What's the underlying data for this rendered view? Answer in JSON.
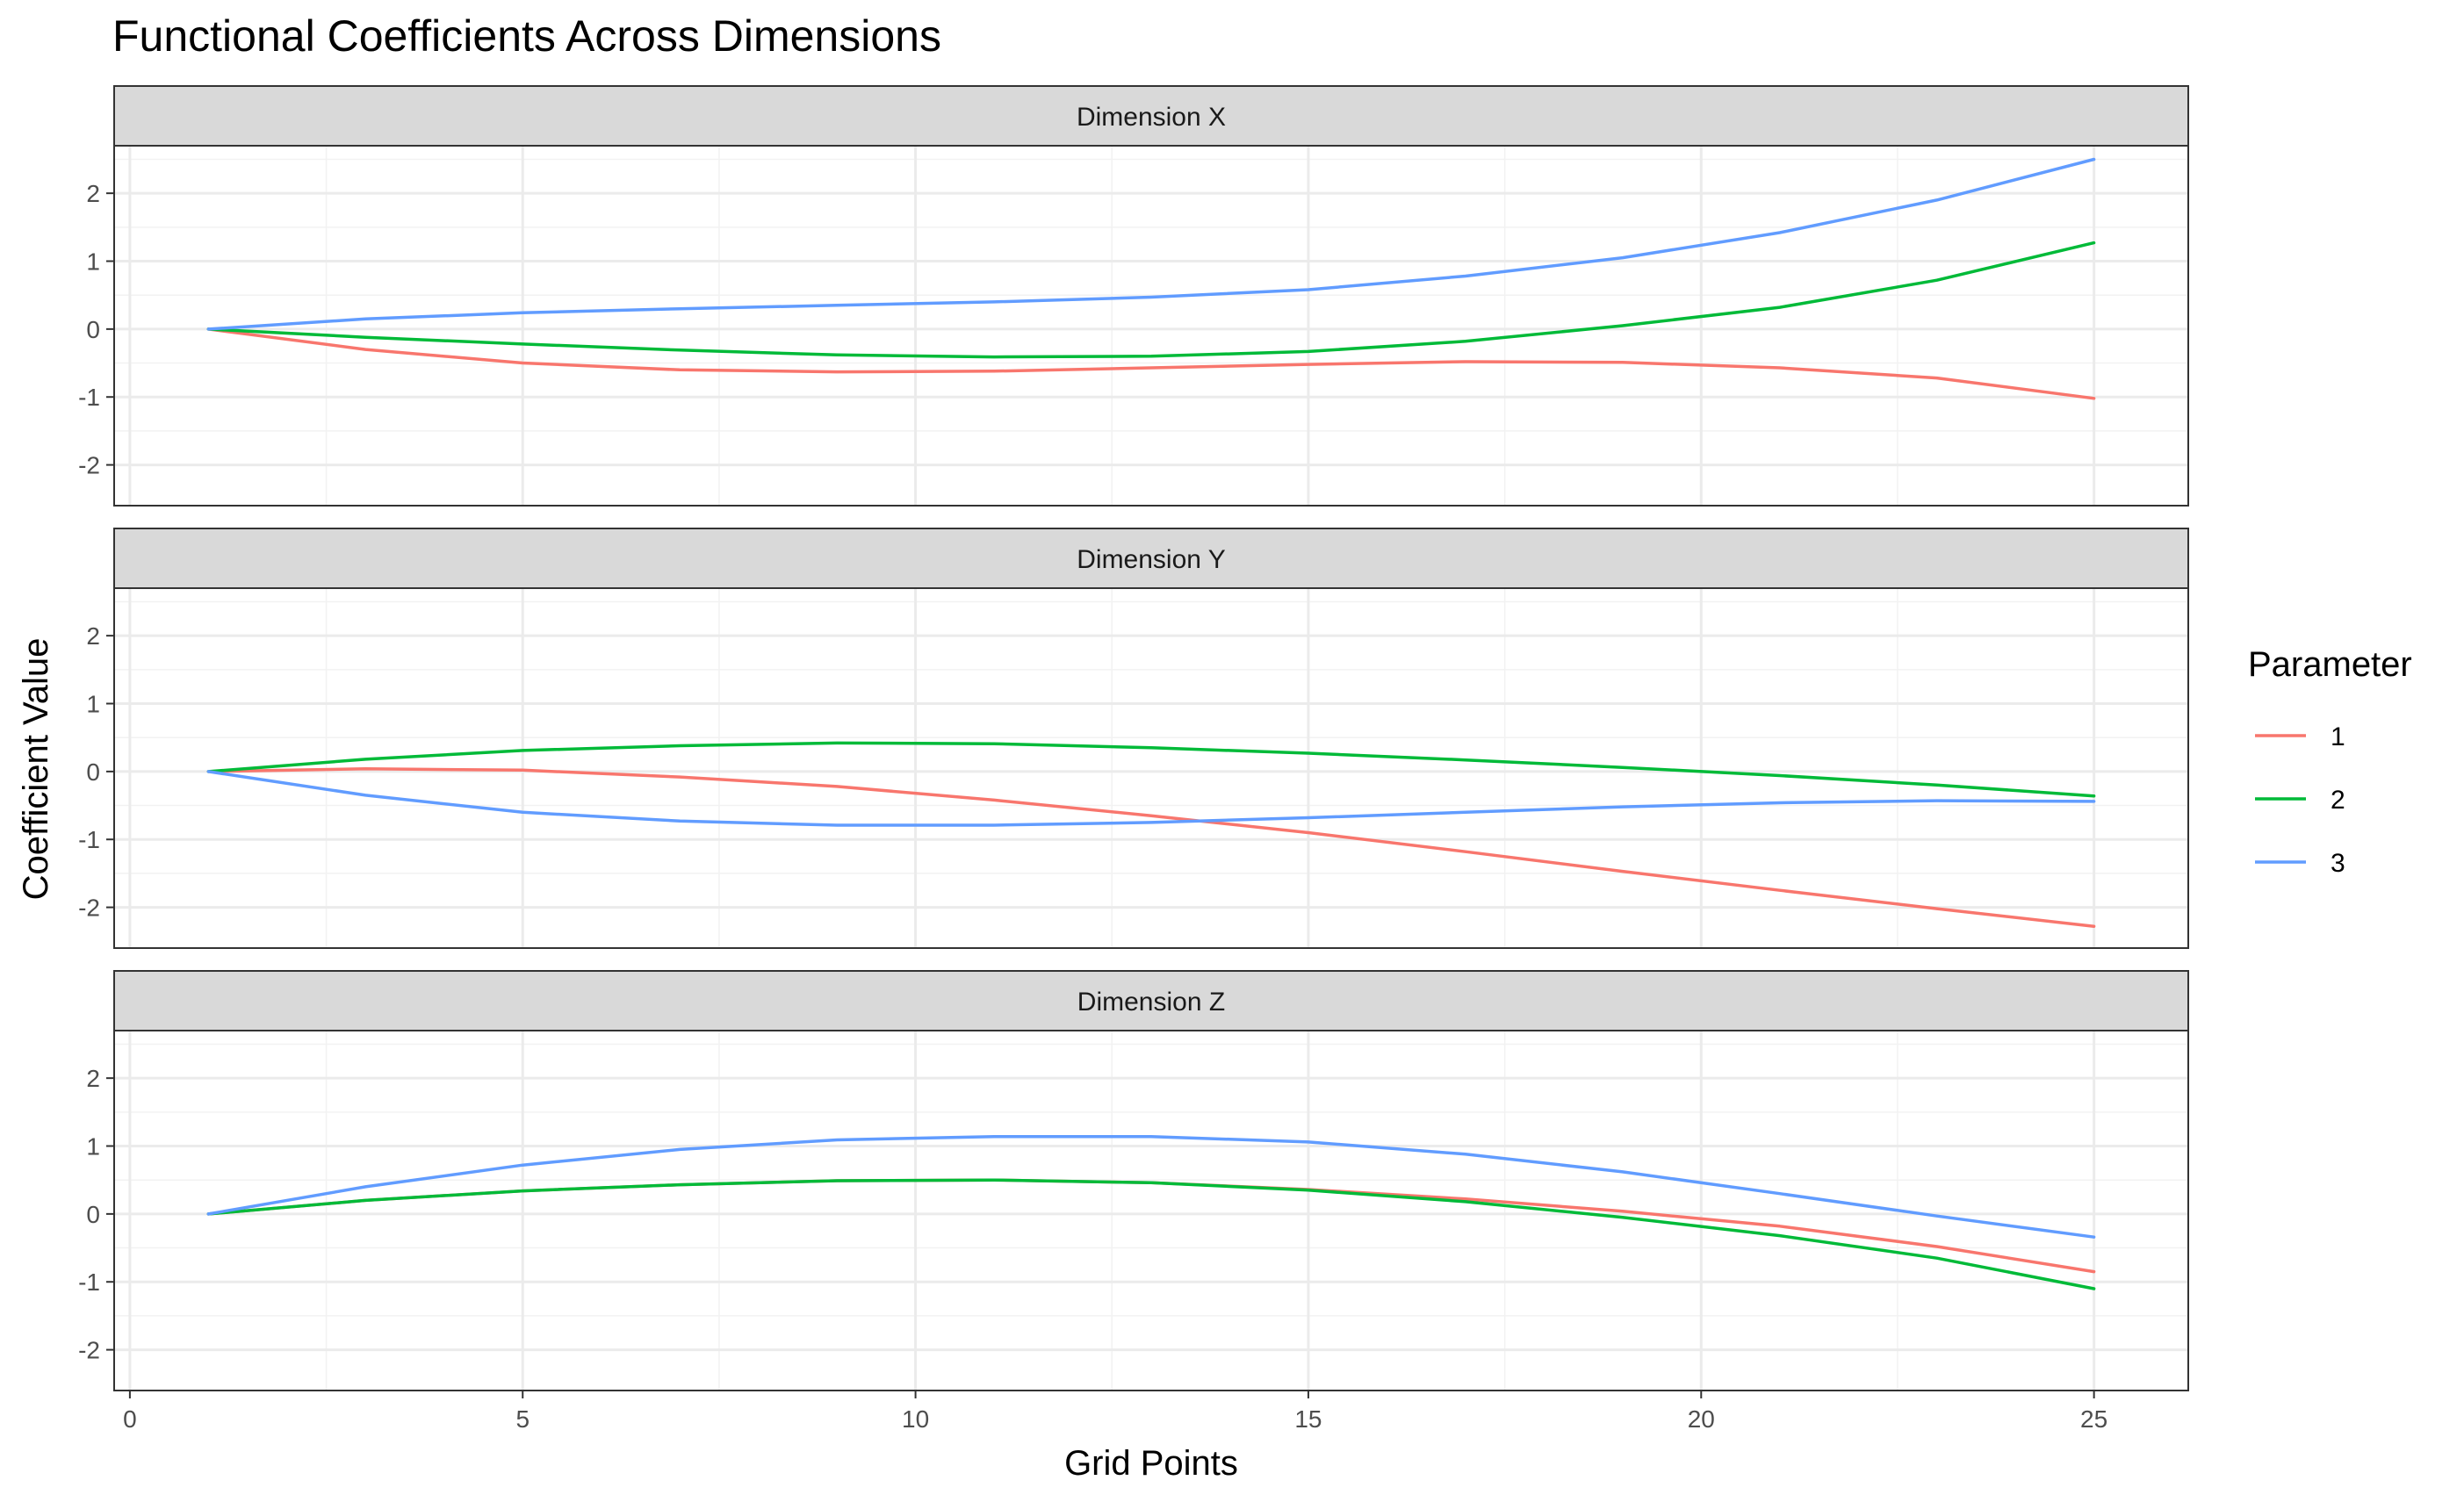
{
  "chart_data": {
    "type": "line",
    "title": "Functional Coefficients Across Dimensions",
    "xlabel": "Grid Points",
    "ylabel": "Coefficient Value",
    "xlim": [
      -0.2,
      26.2
    ],
    "ylim": [
      -2.6,
      2.7
    ],
    "xticks": [
      0,
      5,
      10,
      15,
      20,
      25
    ],
    "yticks": [
      -2,
      -1,
      0,
      1,
      2
    ],
    "grid": true,
    "legend": {
      "title": "Parameter",
      "position": "right",
      "entries": [
        "1",
        "2",
        "3"
      ]
    },
    "colors": {
      "1": "#F8766D",
      "2": "#00BA38",
      "3": "#619CFF"
    },
    "facets": [
      {
        "label": "Dimension X",
        "series": [
          {
            "name": "1",
            "x": [
              1,
              3,
              5,
              7,
              9,
              11,
              13,
              15,
              17,
              19,
              21,
              23,
              25
            ],
            "values": [
              0,
              -0.3,
              -0.5,
              -0.6,
              -0.63,
              -0.62,
              -0.57,
              -0.52,
              -0.48,
              -0.49,
              -0.57,
              -0.72,
              -1.02
            ]
          },
          {
            "name": "2",
            "x": [
              1,
              3,
              5,
              7,
              9,
              11,
              13,
              15,
              17,
              19,
              21,
              23,
              25
            ],
            "values": [
              0,
              -0.12,
              -0.22,
              -0.31,
              -0.38,
              -0.41,
              -0.4,
              -0.33,
              -0.18,
              0.05,
              0.32,
              0.72,
              1.27
            ]
          },
          {
            "name": "3",
            "x": [
              1,
              3,
              5,
              7,
              9,
              11,
              13,
              15,
              17,
              19,
              21,
              23,
              25
            ],
            "values": [
              0,
              0.15,
              0.24,
              0.3,
              0.35,
              0.4,
              0.47,
              0.58,
              0.78,
              1.05,
              1.42,
              1.9,
              2.5
            ]
          }
        ]
      },
      {
        "label": "Dimension Y",
        "series": [
          {
            "name": "1",
            "x": [
              1,
              3,
              5,
              7,
              9,
              11,
              13,
              15,
              17,
              19,
              21,
              23,
              25
            ],
            "values": [
              0,
              0.04,
              0.02,
              -0.08,
              -0.22,
              -0.42,
              -0.65,
              -0.9,
              -1.18,
              -1.47,
              -1.75,
              -2.02,
              -2.28
            ]
          },
          {
            "name": "2",
            "x": [
              1,
              3,
              5,
              7,
              9,
              11,
              13,
              15,
              17,
              19,
              21,
              23,
              25
            ],
            "values": [
              0,
              0.18,
              0.31,
              0.38,
              0.42,
              0.41,
              0.35,
              0.27,
              0.17,
              0.06,
              -0.06,
              -0.2,
              -0.36
            ]
          },
          {
            "name": "3",
            "x": [
              1,
              3,
              5,
              7,
              9,
              11,
              13,
              15,
              17,
              19,
              21,
              23,
              25
            ],
            "values": [
              0,
              -0.35,
              -0.6,
              -0.73,
              -0.79,
              -0.79,
              -0.75,
              -0.68,
              -0.6,
              -0.52,
              -0.46,
              -0.43,
              -0.44
            ]
          }
        ]
      },
      {
        "label": "Dimension Z",
        "series": [
          {
            "name": "1",
            "x": [
              1,
              3,
              5,
              7,
              9,
              11,
              13,
              15,
              17,
              19,
              21,
              23,
              25
            ],
            "values": [
              0,
              0.2,
              0.34,
              0.43,
              0.49,
              0.5,
              0.46,
              0.36,
              0.22,
              0.04,
              -0.18,
              -0.48,
              -0.85
            ]
          },
          {
            "name": "2",
            "x": [
              1,
              3,
              5,
              7,
              9,
              11,
              13,
              15,
              17,
              19,
              21,
              23,
              25
            ],
            "values": [
              0,
              0.2,
              0.34,
              0.43,
              0.49,
              0.5,
              0.46,
              0.35,
              0.18,
              -0.05,
              -0.32,
              -0.65,
              -1.1
            ]
          },
          {
            "name": "3",
            "x": [
              1,
              3,
              5,
              7,
              9,
              11,
              13,
              15,
              17,
              19,
              21,
              23,
              25
            ],
            "values": [
              0,
              0.4,
              0.72,
              0.95,
              1.09,
              1.14,
              1.14,
              1.06,
              0.88,
              0.62,
              0.3,
              -0.03,
              -0.34
            ]
          }
        ]
      }
    ]
  }
}
